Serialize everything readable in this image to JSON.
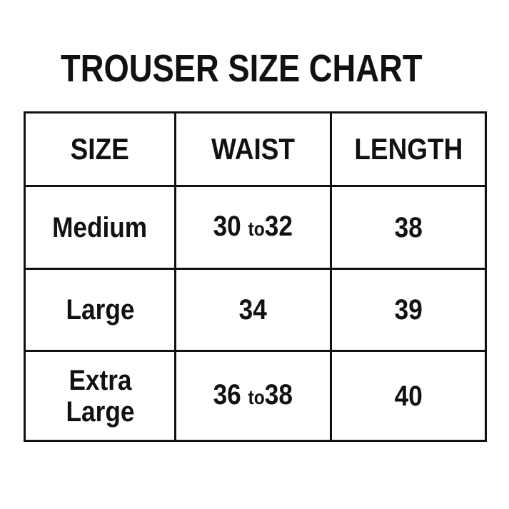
{
  "title": "TROUSER SIZE CHART",
  "headers": [
    "SIZE",
    "WAIST",
    "LENGTH"
  ],
  "rows": [
    {
      "size": [
        "Medium"
      ],
      "waist": {
        "from": "30",
        "sep": "to",
        "to": "32"
      },
      "length": "38"
    },
    {
      "size": [
        "Large"
      ],
      "waist": {
        "value": "34"
      },
      "length": "39"
    },
    {
      "size": [
        "Extra",
        "Large"
      ],
      "waist": {
        "from": "36",
        "sep": "to",
        "to": "38"
      },
      "length": "40"
    }
  ]
}
